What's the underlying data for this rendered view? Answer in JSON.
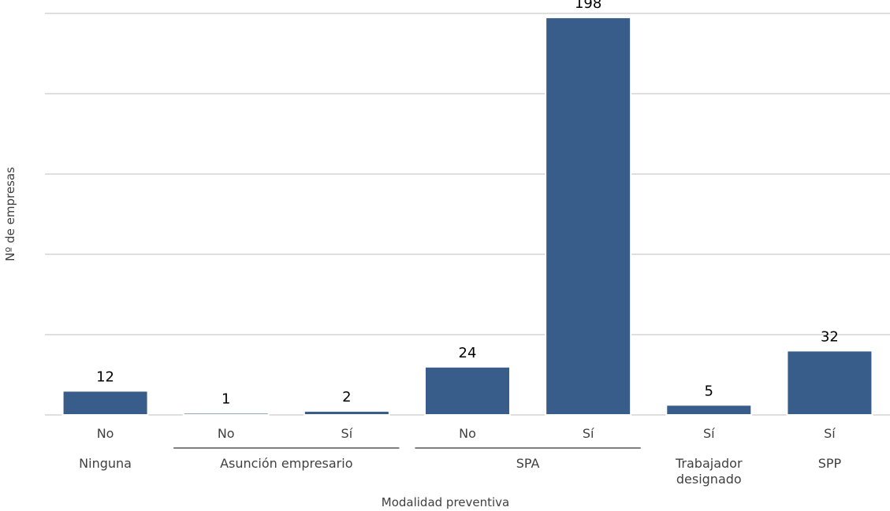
{
  "chart_data": {
    "type": "bar",
    "title": "",
    "xlabel": "Modalidad preventiva",
    "ylabel": "Nº de empresas",
    "ylim": [
      0,
      200
    ],
    "grid": true,
    "legend": "none",
    "bar_color": "#385d8a",
    "categories": [
      "No",
      "No",
      "Sí",
      "No",
      "Sí",
      "Sí",
      "Sí"
    ],
    "values": [
      12,
      1,
      2,
      24,
      198,
      5,
      32
    ],
    "groups": [
      {
        "label": "Ninguna",
        "start": 0,
        "end": 0,
        "bracket": false
      },
      {
        "label": "Asunción empresario",
        "start": 1,
        "end": 2,
        "bracket": true
      },
      {
        "label": "SPA",
        "start": 3,
        "end": 4,
        "bracket": true
      },
      {
        "label": "Trabajador designado",
        "lines": [
          "Trabajador",
          "designado"
        ],
        "start": 5,
        "end": 5,
        "bracket": false
      },
      {
        "label": "SPP",
        "start": 6,
        "end": 6,
        "bracket": false
      }
    ]
  }
}
